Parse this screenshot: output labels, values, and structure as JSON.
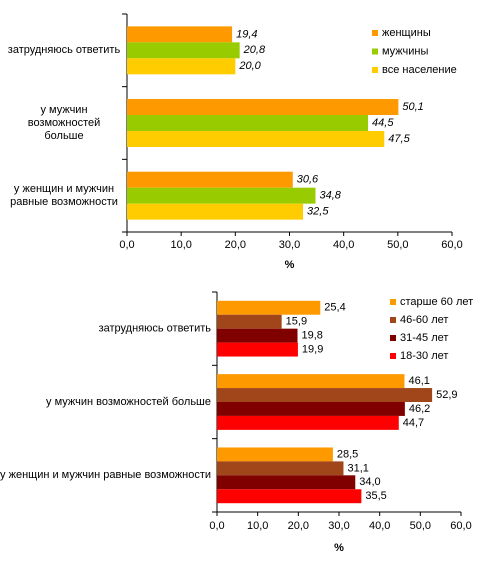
{
  "chart_data": [
    {
      "type": "bar",
      "orientation": "horizontal",
      "categories": [
        "затрудняюсь ответить",
        "у мужчин возможностей больше",
        "у женщин и мужчин равные возможности"
      ],
      "series": [
        {
          "name": "женщины",
          "color": "#ff9900",
          "values": [
            19.4,
            50.1,
            30.6
          ],
          "value_labels": [
            "19,4",
            "50,1",
            "30,6"
          ]
        },
        {
          "name": "мужчины",
          "color": "#99cc00",
          "values": [
            20.8,
            44.5,
            34.8
          ],
          "value_labels": [
            "20,8",
            "44,5",
            "34,8"
          ]
        },
        {
          "name": "все население",
          "color": "#ffcc00",
          "values": [
            20.0,
            47.5,
            32.5
          ],
          "value_labels": [
            "20,0",
            "47,5",
            "32,5"
          ]
        }
      ],
      "xlabel": "%",
      "xlim": [
        0,
        60
      ],
      "xticks": [
        {
          "value": 0,
          "label": "0,0"
        },
        {
          "value": 10,
          "label": "10,0"
        },
        {
          "value": 20,
          "label": "20,0"
        },
        {
          "value": 30,
          "label": "30,0"
        },
        {
          "value": 40,
          "label": "40,0"
        },
        {
          "value": 50,
          "label": "50,0"
        },
        {
          "value": 60,
          "label": "60,0"
        }
      ],
      "legend": "upper right"
    },
    {
      "type": "bar",
      "orientation": "horizontal",
      "categories": [
        "затрудняюсь ответить",
        "у мужчин возможностей больше",
        "у женщин и мужчин равные возможности"
      ],
      "series": [
        {
          "name": "старше 60 лет",
          "color": "#ff9900",
          "values": [
            25.4,
            46.1,
            28.5
          ],
          "value_labels": [
            "25,4",
            "46,1",
            "28,5"
          ]
        },
        {
          "name": "46-60 лет",
          "color": "#a0461a",
          "values": [
            15.9,
            52.9,
            31.1
          ],
          "value_labels": [
            "15,9",
            "52,9",
            "31,1"
          ]
        },
        {
          "name": "31-45 лет",
          "color": "#800000",
          "values": [
            19.8,
            46.2,
            34.0
          ],
          "value_labels": [
            "19,8",
            "46,2",
            "34,0"
          ]
        },
        {
          "name": "18-30 лет",
          "color": "#ff0000",
          "values": [
            19.9,
            44.7,
            35.5
          ],
          "value_labels": [
            "19,9",
            "44,7",
            "35,5"
          ]
        }
      ],
      "xlabel": "%",
      "xlim": [
        0,
        60
      ],
      "xticks": [
        {
          "value": 0,
          "label": "0,0"
        },
        {
          "value": 10,
          "label": "10,0"
        },
        {
          "value": 20,
          "label": "20,0"
        },
        {
          "value": 30,
          "label": "30,0"
        },
        {
          "value": 40,
          "label": "40,0"
        },
        {
          "value": 50,
          "label": "50,0"
        },
        {
          "value": 60,
          "label": "60,0"
        }
      ],
      "legend": "upper right"
    }
  ]
}
